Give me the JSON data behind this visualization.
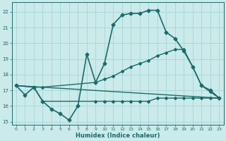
{
  "xlabel": "Humidex (Indice chaleur)",
  "xlim": [
    -0.5,
    23.5
  ],
  "ylim": [
    14.8,
    22.6
  ],
  "yticks": [
    15,
    16,
    17,
    18,
    19,
    20,
    21,
    22
  ],
  "xticks": [
    0,
    1,
    2,
    3,
    4,
    5,
    6,
    7,
    8,
    9,
    10,
    11,
    12,
    13,
    14,
    15,
    16,
    17,
    18,
    19,
    20,
    21,
    22,
    23
  ],
  "bg_color": "#cbeaea",
  "grid_color": "#a8d5d5",
  "line_color": "#1a6b6b",
  "series": [
    {
      "x": [
        0,
        1,
        2,
        3,
        4,
        5,
        6,
        7,
        8,
        9,
        10,
        11,
        12,
        13,
        14,
        15,
        16,
        17,
        18,
        19,
        20,
        21,
        22,
        23
      ],
      "y": [
        17.3,
        16.7,
        17.2,
        16.3,
        15.8,
        15.5,
        15.1,
        16.0,
        19.3,
        17.5,
        18.7,
        21.2,
        21.8,
        21.9,
        21.9,
        22.1,
        22.1,
        20.7,
        20.3,
        19.5,
        18.5,
        17.3,
        17.0,
        16.5
      ],
      "marker": "D",
      "markersize": 2.5,
      "linewidth": 1.2
    },
    {
      "x": [
        0,
        2,
        3,
        9,
        10,
        11,
        12,
        13,
        14,
        15,
        16,
        17,
        18,
        19,
        20,
        21,
        22,
        23
      ],
      "y": [
        17.3,
        17.2,
        17.2,
        17.5,
        17.7,
        17.9,
        18.2,
        18.5,
        18.7,
        18.9,
        19.2,
        19.4,
        19.6,
        19.6,
        18.5,
        17.3,
        16.9,
        16.5
      ],
      "marker": "D",
      "markersize": 2,
      "linewidth": 1.0
    },
    {
      "x": [
        0,
        2,
        3,
        9,
        10,
        11,
        12,
        13,
        14,
        15,
        16,
        17,
        18,
        19,
        20,
        21,
        22,
        23
      ],
      "y": [
        17.3,
        17.2,
        16.3,
        16.3,
        16.3,
        16.3,
        16.3,
        16.3,
        16.3,
        16.3,
        16.5,
        16.5,
        16.5,
        16.5,
        16.5,
        16.5,
        16.5,
        16.5
      ],
      "marker": "D",
      "markersize": 2,
      "linewidth": 1.0
    },
    {
      "x": [
        0,
        23
      ],
      "y": [
        17.3,
        16.5
      ],
      "marker": null,
      "markersize": 0,
      "linewidth": 1.0
    }
  ]
}
